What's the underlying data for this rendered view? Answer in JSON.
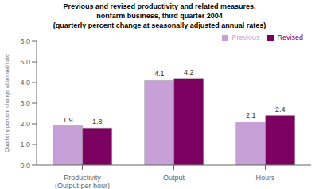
{
  "chart_data": {
    "type": "bar",
    "title": "Previous and revised productivity and related measures,\nnonfarm business, third quarter 2004\n(quarterly percent change at seasonally adjusted annual rates)",
    "categories": [
      "Productivity\n(Output per hour)",
      "Output",
      "Hours"
    ],
    "series": [
      {
        "name": "Previous",
        "color": "#c8a0d8",
        "values": [
          1.9,
          4.1,
          2.1
        ]
      },
      {
        "name": "Revised",
        "color": "#7b0060",
        "values": [
          1.8,
          4.2,
          2.4
        ]
      }
    ],
    "ylabel": "Quarterly percent change at annual rate",
    "ylim": [
      0,
      6.0
    ],
    "yticks": [
      {
        "value": 0,
        "label": "0.0"
      },
      {
        "value": 1,
        "label": "1.0"
      },
      {
        "value": 2,
        "label": "2.0"
      },
      {
        "value": 3,
        "label": "3.0"
      },
      {
        "value": 4,
        "label": "4.0"
      },
      {
        "value": 5,
        "label": "5.0"
      },
      {
        "value": 6,
        "label": "6.0"
      }
    ],
    "legend": "upper right",
    "data_labels": true,
    "grid": false
  }
}
